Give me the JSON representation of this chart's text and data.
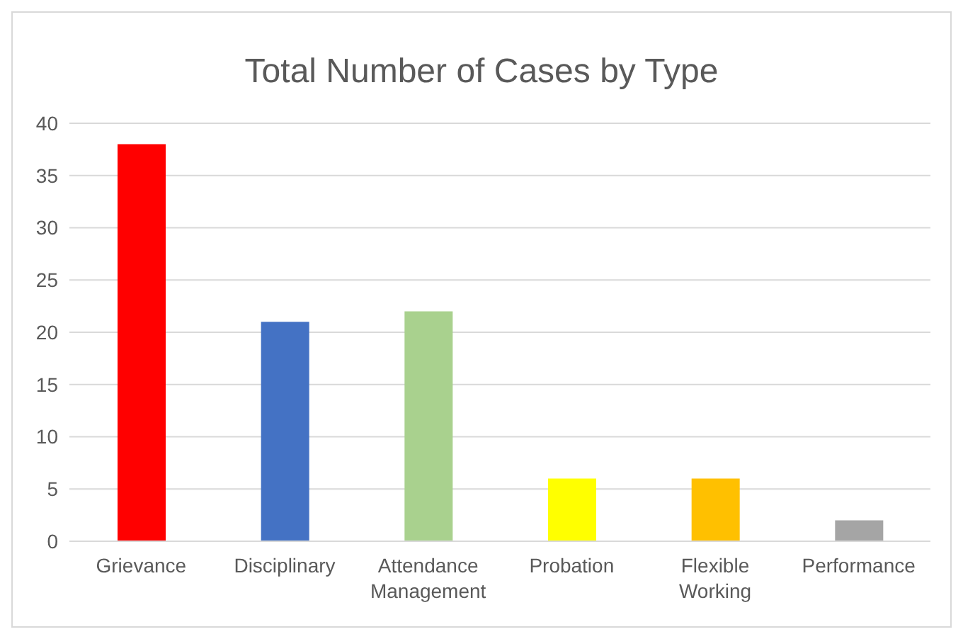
{
  "chart_data": {
    "type": "bar",
    "title": "Total Number of Cases by Type",
    "categories": [
      "Grievance",
      "Disciplinary",
      "Attendance Management",
      "Probation",
      "Flexible Working",
      "Performance"
    ],
    "values": [
      38,
      21,
      22,
      6,
      6,
      2
    ],
    "colors": [
      "#ff0000",
      "#4472c4",
      "#a9d18e",
      "#ffff00",
      "#ffc000",
      "#a5a5a5"
    ],
    "ylim": [
      0,
      40
    ],
    "yticks": [
      0,
      5,
      10,
      15,
      20,
      25,
      30,
      35,
      40
    ],
    "grid": "y"
  }
}
